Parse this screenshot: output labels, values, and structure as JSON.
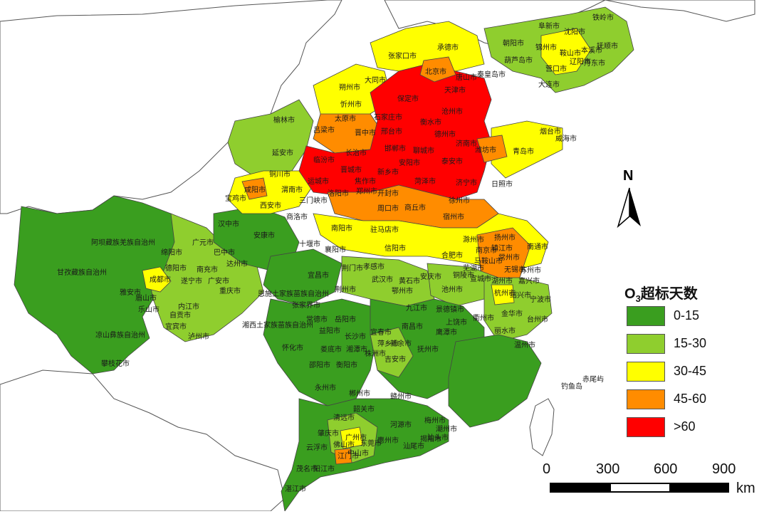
{
  "legend": {
    "title_main": "O",
    "title_sub": "3",
    "title_rest": "超标天数",
    "items": [
      {
        "label": "0-15",
        "color": "#3a9e1f"
      },
      {
        "label": "15-30",
        "color": "#8fce2e"
      },
      {
        "label": "30-45",
        "color": "#ffff00"
      },
      {
        "label": "45-60",
        "color": "#ff8c00"
      },
      {
        "label": ">60",
        "color": "#ff0000"
      }
    ]
  },
  "north_arrow": {
    "label": "N"
  },
  "scale_bar": {
    "ticks": [
      "0",
      "300",
      "600",
      "900"
    ],
    "unit": "km"
  },
  "map_colors": {
    "sea": "#ffffff",
    "border": "#333333",
    "outside": "#ffffff"
  },
  "islands": {
    "diaoyu": "钓鱼岛",
    "chiwei": "赤尾屿"
  },
  "cities": [
    {
      "name": "北京市",
      "level": ">60"
    },
    {
      "name": "天津市",
      "level": ">60"
    },
    {
      "name": "保定市",
      "level": ">60"
    },
    {
      "name": "石家庄市",
      "level": ">60"
    },
    {
      "name": "邢台市",
      "level": ">60"
    },
    {
      "name": "邯郸市",
      "level": ">60"
    },
    {
      "name": "衡水市",
      "level": ">60"
    },
    {
      "name": "沧州市",
      "level": ">60"
    },
    {
      "name": "德州市",
      "level": ">60"
    },
    {
      "name": "聊城市",
      "level": ">60"
    },
    {
      "name": "济南市",
      "level": ">60"
    },
    {
      "name": "泰安市",
      "level": ">60"
    },
    {
      "name": "济宁市",
      "level": ">60"
    },
    {
      "name": "安阳市",
      "level": ">60"
    },
    {
      "name": "新乡市",
      "level": ">60"
    },
    {
      "name": "焦作市",
      "level": ">60"
    },
    {
      "name": "临汾市",
      "level": ">60"
    },
    {
      "name": "晋城市",
      "level": ">60"
    },
    {
      "name": "长治市",
      "level": ">60"
    },
    {
      "name": "郑州市",
      "level": ">60"
    },
    {
      "name": "洛阳市",
      "level": ">60"
    },
    {
      "name": "三门峡市",
      "level": ">60"
    },
    {
      "name": "运城市",
      "level": "45-60"
    },
    {
      "name": "太原市",
      "level": "45-60"
    },
    {
      "name": "晋中市",
      "level": "45-60"
    },
    {
      "name": "潍坊市",
      "level": "45-60"
    },
    {
      "name": "唐山市",
      "level": "45-60"
    },
    {
      "name": "咸阳市",
      "level": "45-60"
    },
    {
      "name": "开封市",
      "level": "45-60"
    },
    {
      "name": "商丘市",
      "level": "45-60"
    },
    {
      "name": "周口市",
      "level": "45-60"
    },
    {
      "name": "菏泽市",
      "level": "45-60"
    },
    {
      "name": "徐州市",
      "level": "45-60"
    },
    {
      "name": "宿州市",
      "level": "45-60"
    },
    {
      "name": "南京市",
      "level": "45-60"
    },
    {
      "name": "常州市",
      "level": "45-60"
    },
    {
      "name": "无锡市",
      "level": "45-60"
    },
    {
      "name": "苏州市",
      "level": "45-60"
    },
    {
      "name": "扬州市",
      "level": "45-60"
    },
    {
      "name": "镇江市",
      "level": "45-60"
    },
    {
      "name": "湖州市",
      "level": "45-60"
    },
    {
      "name": "嘉兴市",
      "level": "45-60"
    },
    {
      "name": "江门市",
      "level": "45-60"
    },
    {
      "name": "张家口市",
      "level": "30-45"
    },
    {
      "name": "承德市",
      "level": "30-45"
    },
    {
      "name": "秦皇岛市",
      "level": "30-45"
    },
    {
      "name": "葫芦岛市",
      "level": "30-45"
    },
    {
      "name": "沈阳市",
      "level": "30-45"
    },
    {
      "name": "辽阳市",
      "level": "30-45"
    },
    {
      "name": "营口市",
      "level": "30-45"
    },
    {
      "name": "大同市",
      "level": "30-45"
    },
    {
      "name": "朔州市",
      "level": "30-45"
    },
    {
      "name": "忻州市",
      "level": "30-45"
    },
    {
      "name": "西安市",
      "level": "30-45"
    },
    {
      "name": "渭南市",
      "level": "30-45"
    },
    {
      "name": "宝鸡市",
      "level": "30-45"
    },
    {
      "name": "铜川市",
      "level": "30-45"
    },
    {
      "name": "南阳市",
      "level": "30-45"
    },
    {
      "name": "驻马店市",
      "level": "30-45"
    },
    {
      "name": "信阳市",
      "level": "30-45"
    },
    {
      "name": "日照市",
      "level": "30-45"
    },
    {
      "name": "青岛市",
      "level": "30-45"
    },
    {
      "name": "烟台市",
      "level": "30-45"
    },
    {
      "name": "合肥市",
      "level": "30-45"
    },
    {
      "name": "滁州市",
      "level": "30-45"
    },
    {
      "name": "南通市",
      "level": "30-45"
    },
    {
      "name": "杭州市",
      "level": "30-45"
    },
    {
      "name": "宣城市",
      "level": "30-45"
    },
    {
      "name": "成都市",
      "level": "30-45"
    },
    {
      "name": "广州市",
      "level": "30-45"
    },
    {
      "name": "佛山市",
      "level": "30-45"
    },
    {
      "name": "肇庆市",
      "level": "30-45"
    },
    {
      "name": "铁岭市",
      "level": "15-30"
    },
    {
      "name": "抚顺市",
      "level": "15-30"
    },
    {
      "name": "本溪市",
      "level": "15-30"
    },
    {
      "name": "丹东市",
      "level": "15-30"
    },
    {
      "name": "阜新市",
      "level": "15-30"
    },
    {
      "name": "朝阳市",
      "level": "15-30"
    },
    {
      "name": "锦州市",
      "level": "15-30"
    },
    {
      "name": "鞍山市",
      "level": "15-30"
    },
    {
      "name": "大连市",
      "level": "15-30"
    },
    {
      "name": "威海市",
      "level": "15-30"
    },
    {
      "name": "榆林市",
      "level": "15-30"
    },
    {
      "name": "延安市",
      "level": "15-30"
    },
    {
      "name": "吕梁市",
      "level": "15-30"
    },
    {
      "name": "商洛市",
      "level": "15-30"
    },
    {
      "name": "十堰市",
      "level": "15-30"
    },
    {
      "name": "绵阳市",
      "level": "15-30"
    },
    {
      "name": "德阳市",
      "level": "15-30"
    },
    {
      "name": "遂宁市",
      "level": "15-30"
    },
    {
      "name": "南充市",
      "level": "15-30"
    },
    {
      "name": "重庆市",
      "level": "15-30"
    },
    {
      "name": "自贡市",
      "level": "15-30"
    },
    {
      "name": "泸州市",
      "level": "15-30"
    },
    {
      "name": "内江市",
      "level": "15-30"
    },
    {
      "name": "宜宾市",
      "level": "15-30"
    },
    {
      "name": "武汉市",
      "level": "15-30"
    },
    {
      "name": "孝感市",
      "level": "15-30"
    },
    {
      "name": "荆门市",
      "level": "15-30"
    },
    {
      "name": "鄂州市",
      "level": "15-30"
    },
    {
      "name": "黄石市",
      "level": "15-30"
    },
    {
      "name": "池州市",
      "level": "15-30"
    },
    {
      "name": "安庆市",
      "level": "15-30"
    },
    {
      "name": "铜陵市",
      "level": "15-30"
    },
    {
      "name": "芜湖市",
      "level": "15-30"
    },
    {
      "name": "马鞍山市",
      "level": "15-30"
    },
    {
      "name": "绍兴市",
      "level": "15-30"
    },
    {
      "name": "宁波市",
      "level": "15-30"
    },
    {
      "name": "金华市",
      "level": "15-30"
    },
    {
      "name": "台州市",
      "level": "15-30"
    },
    {
      "name": "湘潭市",
      "level": "15-30"
    },
    {
      "name": "株洲市",
      "level": "15-30"
    },
    {
      "name": "萍乡市",
      "level": "15-30"
    },
    {
      "name": "吉安市",
      "level": "15-30"
    },
    {
      "name": "新余市",
      "level": "15-30"
    },
    {
      "name": "清远市",
      "level": "15-30"
    },
    {
      "name": "东莞市",
      "level": "15-30"
    },
    {
      "name": "中山市",
      "level": "15-30"
    },
    {
      "name": "云浮市",
      "level": "15-30"
    },
    {
      "name": "汕头市",
      "level": "15-30"
    },
    {
      "name": "阿坝藏族羌族自治州",
      "level": "0-15"
    },
    {
      "name": "甘孜藏族自治州",
      "level": "0-15"
    },
    {
      "name": "凉山彝族自治州",
      "level": "0-15"
    },
    {
      "name": "攀枝花市",
      "level": "0-15"
    },
    {
      "name": "雅安市",
      "level": "0-15"
    },
    {
      "name": "眉山市",
      "level": "0-15"
    },
    {
      "name": "乐山市",
      "level": "0-15"
    },
    {
      "name": "广元市",
      "level": "0-15"
    },
    {
      "name": "巴中市",
      "level": "0-15"
    },
    {
      "name": "达州市",
      "level": "0-15"
    },
    {
      "name": "广安市",
      "level": "0-15"
    },
    {
      "name": "汉中市",
      "level": "0-15"
    },
    {
      "name": "安康市",
      "level": "0-15"
    },
    {
      "name": "襄阳市",
      "level": "0-15"
    },
    {
      "name": "宜昌市",
      "level": "0-15"
    },
    {
      "name": "荆州市",
      "level": "0-15"
    },
    {
      "name": "恩施土家族苗族自治州",
      "level": "0-15"
    },
    {
      "name": "湘西土家族苗族自治州",
      "level": "0-15"
    },
    {
      "name": "张家界市",
      "level": "0-15"
    },
    {
      "name": "常德市",
      "level": "0-15"
    },
    {
      "name": "益阳市",
      "level": "0-15"
    },
    {
      "name": "岳阳市",
      "level": "0-15"
    },
    {
      "name": "长沙市",
      "level": "0-15"
    },
    {
      "name": "娄底市",
      "level": "0-15"
    },
    {
      "name": "怀化市",
      "level": "0-15"
    },
    {
      "name": "邵阳市",
      "level": "0-15"
    },
    {
      "name": "衡阳市",
      "level": "0-15"
    },
    {
      "name": "永州市",
      "level": "0-15"
    },
    {
      "name": "郴州市",
      "level": "0-15"
    },
    {
      "name": "宜春市",
      "level": "0-15"
    },
    {
      "name": "南昌市",
      "level": "0-15"
    },
    {
      "name": "抚州市",
      "level": "0-15"
    },
    {
      "name": "鹰潭市",
      "level": "0-15"
    },
    {
      "name": "上饶市",
      "level": "0-15"
    },
    {
      "name": "九江市",
      "level": "0-15"
    },
    {
      "name": "景德镇市",
      "level": "0-15"
    },
    {
      "name": "赣州市",
      "level": "0-15"
    },
    {
      "name": "衢州市",
      "level": "0-15"
    },
    {
      "name": "丽水市",
      "level": "0-15"
    },
    {
      "name": "温州市",
      "level": "0-15"
    },
    {
      "name": "韶关市",
      "level": "0-15"
    },
    {
      "name": "河源市",
      "level": "0-15"
    },
    {
      "name": "梅州市",
      "level": "0-15"
    },
    {
      "name": "潮州市",
      "level": "0-15"
    },
    {
      "name": "揭阳市",
      "level": "0-15"
    },
    {
      "name": "汕尾市",
      "level": "0-15"
    },
    {
      "name": "惠州市",
      "level": "0-15"
    },
    {
      "name": "阳江市",
      "level": "0-15"
    },
    {
      "name": "茂名市",
      "level": "0-15"
    },
    {
      "name": "湛江市",
      "level": "0-15"
    }
  ]
}
